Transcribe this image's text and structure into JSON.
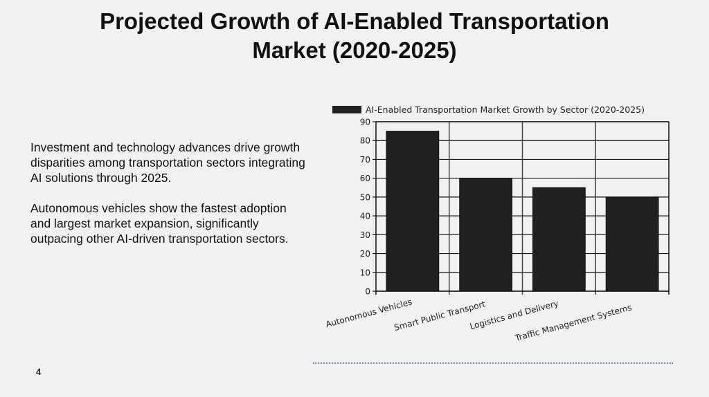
{
  "slide": {
    "title_line1": "Projected Growth of AI-Enabled Transportation",
    "title_line2": "Market (2020-2025)",
    "paragraph1": "Investment and technology advances drive growth disparities among transportation sectors integrating AI solutions through 2025.",
    "paragraph2": "Autonomous vehicles show the fastest adoption and largest market expansion, significantly outpacing other AI-driven transportation sectors.",
    "page_number": "4"
  },
  "chart_data": {
    "type": "bar",
    "title": "",
    "legend": [
      "AI-Enabled Transportation Market Growth by Sector (2020-2025)"
    ],
    "legend_placement": "top",
    "categories": [
      "Autonomous Vehicles",
      "Smart Public Transport",
      "Logistics and Delivery",
      "Traffic Management Systems"
    ],
    "values": [
      85,
      60,
      55,
      50
    ],
    "xlabel": "",
    "ylabel": "",
    "ylim": [
      0,
      90
    ],
    "yticks": [
      0,
      10,
      20,
      30,
      40,
      50,
      60,
      70,
      80,
      90
    ],
    "grid": true,
    "bar_color": "#202020"
  }
}
